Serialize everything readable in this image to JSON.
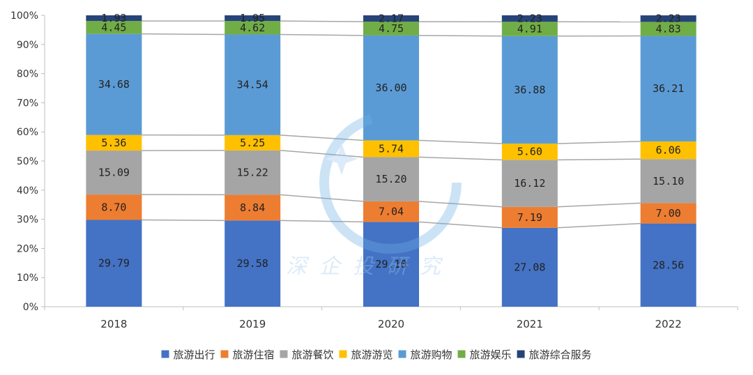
{
  "chart_data": {
    "type": "bar",
    "stacked": true,
    "percent": true,
    "title": "",
    "xlabel": "",
    "ylabel": "",
    "categories": [
      "2018",
      "2019",
      "2020",
      "2021",
      "2022"
    ],
    "ylim": [
      0,
      100
    ],
    "yticks": [
      "0%",
      "10%",
      "20%",
      "30%",
      "40%",
      "50%",
      "60%",
      "70%",
      "80%",
      "90%",
      "100%"
    ],
    "series": [
      {
        "name": "旅游出行",
        "color": "#4472C4",
        "values": [
          29.79,
          29.58,
          29.1,
          27.08,
          28.56
        ],
        "labels": [
          "29.79",
          "29.58",
          "29.10",
          "27.08",
          "28.56"
        ]
      },
      {
        "name": "旅游住宿",
        "color": "#ED7D31",
        "values": [
          8.7,
          8.84,
          7.04,
          7.19,
          7.0
        ],
        "labels": [
          "8.70",
          "8.84",
          "7.04",
          "7.19",
          "7.00"
        ]
      },
      {
        "name": "旅游餐饮",
        "color": "#A5A5A5",
        "values": [
          15.09,
          15.22,
          15.2,
          16.12,
          15.1
        ],
        "labels": [
          "15.09",
          "15.22",
          "15.20",
          "16.12",
          "15.10"
        ]
      },
      {
        "name": "旅游游览",
        "color": "#FFC000",
        "values": [
          5.36,
          5.25,
          5.74,
          5.6,
          6.06
        ],
        "labels": [
          "5.36",
          "5.25",
          "5.74",
          "5.60",
          "6.06"
        ]
      },
      {
        "name": "旅游购物",
        "color": "#5B9BD5",
        "values": [
          34.68,
          34.54,
          36.0,
          36.88,
          36.21
        ],
        "labels": [
          "34.68",
          "34.54",
          "36.00",
          "36.88",
          "36.21"
        ]
      },
      {
        "name": "旅游娱乐",
        "color": "#70AD47",
        "values": [
          4.45,
          4.62,
          4.75,
          4.91,
          4.83
        ],
        "labels": [
          "4.45",
          "4.62",
          "4.75",
          "4.91",
          "4.83"
        ]
      },
      {
        "name": "旅游综合服务",
        "color": "#264478",
        "values": [
          1.93,
          1.95,
          2.17,
          2.23,
          2.23
        ],
        "labels": [
          "1.93",
          "1.95",
          "2.17",
          "2.23",
          "2.23"
        ]
      }
    ],
    "series_lines": true,
    "grid": false,
    "legend_position": "bottom"
  },
  "watermark": {
    "text": "深企投研究"
  }
}
